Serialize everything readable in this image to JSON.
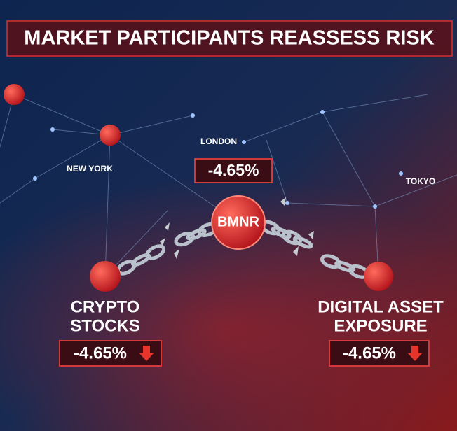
{
  "title": "MARKET PARTICIPANTS REASSESS RISK",
  "cities": [
    "LONDON",
    "NEW YORK",
    "TOKYO"
  ],
  "center": {
    "label": "BMNR",
    "change": "-4.65%"
  },
  "left": {
    "label": [
      "CRYPTO",
      "STOCKS"
    ],
    "change": "-4.65%"
  },
  "right": {
    "label": [
      "DIGITAL ASSET",
      "EXPOSURE"
    ],
    "change": "-4.65%"
  }
}
